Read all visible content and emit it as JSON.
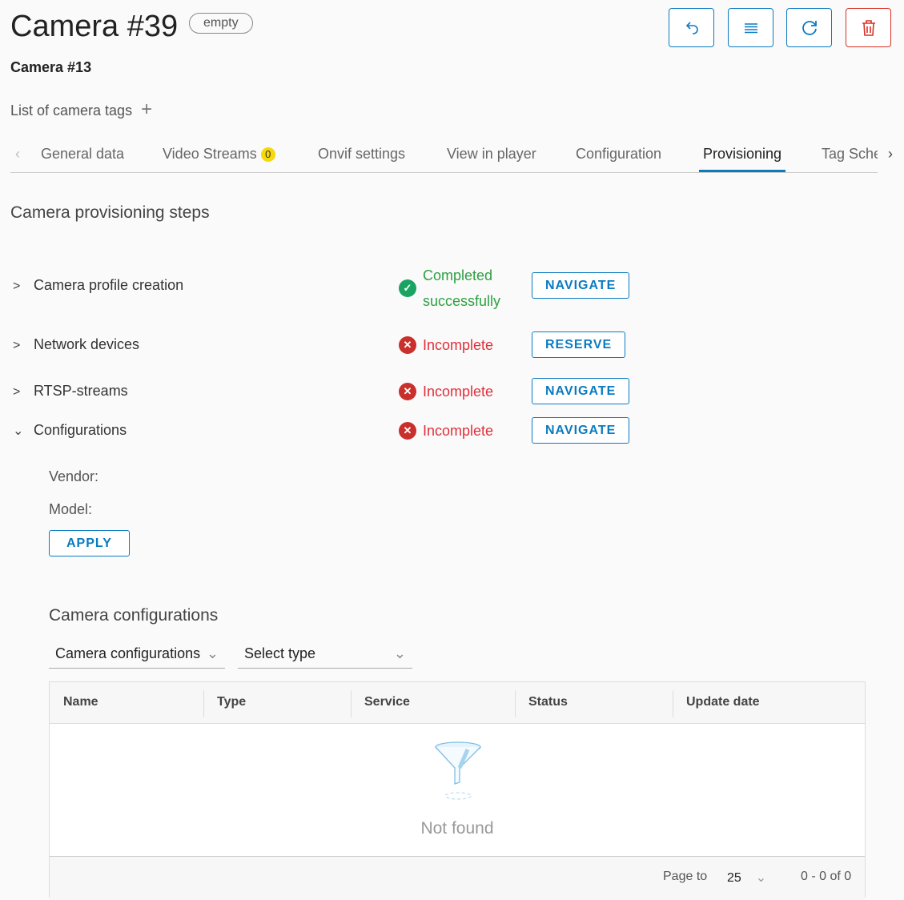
{
  "header": {
    "title": "Camera #39",
    "badge": "empty",
    "subtitle": "Camera #13",
    "tags_label": "List of camera tags",
    "add_tag_icon": "plus-icon"
  },
  "toolbar": {
    "buttons": [
      "undo-icon",
      "list-icon",
      "refresh-icon",
      "delete-icon"
    ],
    "accent": "#0a7bc1",
    "danger": "#d93025"
  },
  "tabs": [
    {
      "label": "General data"
    },
    {
      "label": "Video Streams",
      "count": "0"
    },
    {
      "label": "Onvif settings"
    },
    {
      "label": "View in player"
    },
    {
      "label": "Configuration"
    },
    {
      "label": "Provisioning",
      "active": true
    },
    {
      "label": "Tag Sche"
    }
  ],
  "section_title": "Camera provisioning steps",
  "steps": [
    {
      "name": "Camera profile creation",
      "status": "Completed successfully",
      "status_line1": "Completed",
      "status_line2": "successfully",
      "state": "ok",
      "action": "NAVIGATE",
      "expanded": false
    },
    {
      "name": "Network devices",
      "status": "Incomplete",
      "state": "bad",
      "action": "RESERVE",
      "expanded": false
    },
    {
      "name": "RTSP-streams",
      "status": "Incomplete",
      "state": "bad",
      "action": "NAVIGATE",
      "expanded": false
    },
    {
      "name": "Configurations",
      "status": "Incomplete",
      "state": "bad",
      "action": "NAVIGATE",
      "expanded": true
    }
  ],
  "config": {
    "vendor_label": "Vendor:",
    "model_label": "Model:",
    "apply": "APPLY"
  },
  "camera_configs": {
    "title": "Camera configurations",
    "filter1": "Camera configurations",
    "filter2": "Select type",
    "columns": [
      "Name",
      "Type",
      "Service",
      "Status",
      "Update date"
    ],
    "empty": "Not found",
    "pagination": {
      "page_to": "Page to",
      "page_size": "25",
      "range": "0 - 0 of 0"
    }
  }
}
